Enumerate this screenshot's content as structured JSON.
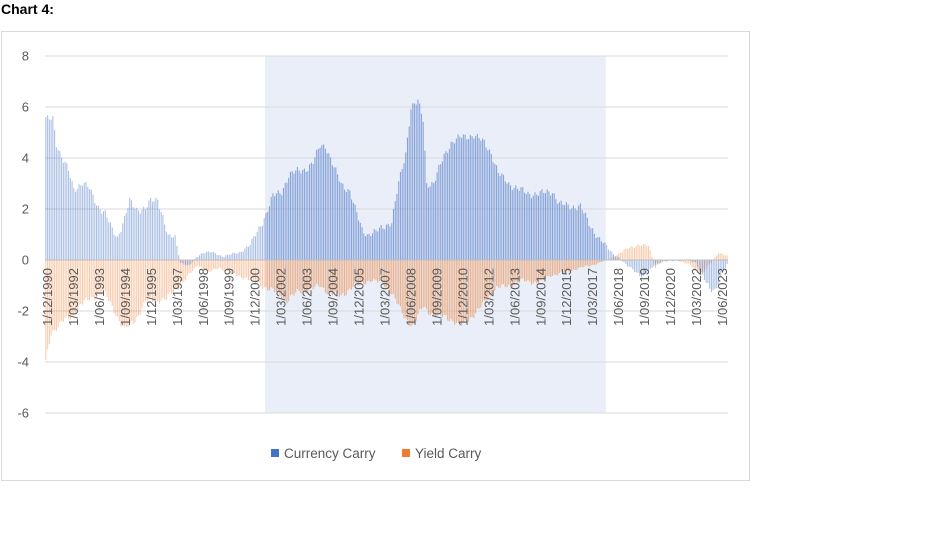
{
  "heading": "Chart 4:",
  "chart_data": {
    "type": "bar",
    "stacked": true,
    "ylim": [
      -6,
      8
    ],
    "yticks": [
      "8",
      "6",
      "4",
      "2",
      "0",
      "-2",
      "-4",
      "-6"
    ],
    "x_start": "1990-12",
    "x_end": "2023-06",
    "x_tick_labels": [
      "1/12/1990",
      "1/03/1992",
      "1/06/1993",
      "1/09/1994",
      "1/12/1995",
      "1/03/1997",
      "1/06/1998",
      "1/09/1999",
      "1/12/2000",
      "1/03/2002",
      "1/06/2003",
      "1/09/2004",
      "1/12/2005",
      "1/03/2007",
      "1/06/2008",
      "1/09/2009",
      "1/12/2010",
      "1/03/2012",
      "1/06/2013",
      "1/09/2014",
      "1/12/2015",
      "1/03/2017",
      "1/06/2018",
      "1/09/2019",
      "1/12/2020",
      "1/03/2022",
      "1/06/2023"
    ],
    "shaded_period": [
      "2001-06",
      "2017-08"
    ],
    "grid": true,
    "legend_position": "bottom",
    "colors": {
      "currency": "#4472C4",
      "yield": "#ED7D31",
      "shade": "#E9EEF8",
      "grid": "#d9d9d9",
      "axis": "#bfbfbf"
    },
    "series": [
      {
        "name": "Currency Carry",
        "anchors": [
          [
            "1990-12",
            5.5
          ],
          [
            "1991-04",
            5.6
          ],
          [
            "1991-06",
            4.6
          ],
          [
            "1991-09",
            4.0
          ],
          [
            "1992-01",
            3.5
          ],
          [
            "1992-04",
            2.8
          ],
          [
            "1992-09",
            3.0
          ],
          [
            "1993-01",
            2.8
          ],
          [
            "1993-06",
            2.1
          ],
          [
            "1993-10",
            1.8
          ],
          [
            "1994-02",
            1.2
          ],
          [
            "1994-05",
            0.9
          ],
          [
            "1994-09",
            1.6
          ],
          [
            "1994-12",
            2.3
          ],
          [
            "1995-04",
            2.0
          ],
          [
            "1995-09",
            2.0
          ],
          [
            "1995-12",
            2.3
          ],
          [
            "1996-04",
            2.4
          ],
          [
            "1996-07",
            1.7
          ],
          [
            "1996-10",
            0.9
          ],
          [
            "1997-02",
            0.9
          ],
          [
            "1997-05",
            -0.1
          ],
          [
            "1997-10",
            -0.25
          ],
          [
            "1998-02",
            0.1
          ],
          [
            "1998-06",
            0.3
          ],
          [
            "1998-11",
            0.3
          ],
          [
            "1999-05",
            0.15
          ],
          [
            "1999-09",
            0.2
          ],
          [
            "2000-03",
            0.3
          ],
          [
            "2000-09",
            0.6
          ],
          [
            "2001-01",
            1.1
          ],
          [
            "2001-06",
            1.8
          ],
          [
            "2001-10",
            2.5
          ],
          [
            "2002-03",
            2.7
          ],
          [
            "2002-07",
            3.3
          ],
          [
            "2002-12",
            3.5
          ],
          [
            "2003-06",
            3.6
          ],
          [
            "2003-09",
            3.8
          ],
          [
            "2004-01",
            4.5
          ],
          [
            "2004-04",
            4.5
          ],
          [
            "2004-09",
            3.6
          ],
          [
            "2005-01",
            3.0
          ],
          [
            "2005-06",
            2.7
          ],
          [
            "2005-09",
            2.0
          ],
          [
            "2006-01",
            1.2
          ],
          [
            "2006-04",
            1.0
          ],
          [
            "2006-09",
            1.1
          ],
          [
            "2007-01",
            1.3
          ],
          [
            "2007-06",
            1.5
          ],
          [
            "2007-10",
            3.0
          ],
          [
            "2008-02",
            4.2
          ],
          [
            "2008-05",
            6.0
          ],
          [
            "2008-09",
            6.2
          ],
          [
            "2008-12",
            5.5
          ],
          [
            "2009-02",
            3.0
          ],
          [
            "2009-06",
            3.0
          ],
          [
            "2009-12",
            4.1
          ],
          [
            "2010-04",
            4.6
          ],
          [
            "2010-09",
            4.8
          ],
          [
            "2011-05",
            4.9
          ],
          [
            "2011-11",
            4.6
          ],
          [
            "2012-03",
            4.2
          ],
          [
            "2012-07",
            3.4
          ],
          [
            "2013-01",
            3.0
          ],
          [
            "2013-06",
            2.8
          ],
          [
            "2013-12",
            2.6
          ],
          [
            "2014-07",
            2.6
          ],
          [
            "2015-02",
            2.7
          ],
          [
            "2015-06",
            2.2
          ],
          [
            "2015-12",
            2.1
          ],
          [
            "2016-06",
            2.1
          ],
          [
            "2016-12",
            1.3
          ],
          [
            "2017-04",
            0.9
          ],
          [
            "2017-08",
            0.6
          ],
          [
            "2017-12",
            0.3
          ],
          [
            "2018-04",
            0.1
          ],
          [
            "2018-08",
            -0.2
          ],
          [
            "2018-12",
            -0.35
          ],
          [
            "2019-06",
            -0.7
          ],
          [
            "2019-09",
            -0.5
          ],
          [
            "2019-12",
            -0.2
          ],
          [
            "2020-06",
            -0.05
          ],
          [
            "2021-06",
            0.0
          ],
          [
            "2021-12",
            -0.1
          ],
          [
            "2022-04",
            -0.6
          ],
          [
            "2022-08",
            -1.2
          ],
          [
            "2022-11",
            -1.2
          ],
          [
            "2023-03",
            -0.5
          ],
          [
            "2023-06",
            -0.2
          ]
        ]
      },
      {
        "name": "Yield Carry",
        "anchors": [
          [
            "1990-12",
            -4.0
          ],
          [
            "1991-03",
            -2.9
          ],
          [
            "1991-09",
            -2.4
          ],
          [
            "1992-02",
            -2.3
          ],
          [
            "1992-08",
            -1.7
          ],
          [
            "1993-03",
            -1.5
          ],
          [
            "1993-09",
            -1.2
          ],
          [
            "1994-03",
            -2.0
          ],
          [
            "1994-09",
            -2.7
          ],
          [
            "1995-03",
            -2.4
          ],
          [
            "1995-09",
            -1.6
          ],
          [
            "1996-03",
            -1.6
          ],
          [
            "1996-09",
            -1.5
          ],
          [
            "1997-02",
            -1.2
          ],
          [
            "1997-07",
            -0.8
          ],
          [
            "1998-03",
            -0.2
          ],
          [
            "1998-09",
            -0.5
          ],
          [
            "1999-03",
            -0.3
          ],
          [
            "1999-09",
            -0.5
          ],
          [
            "2000-06",
            -0.7
          ],
          [
            "2001-01",
            -0.9
          ],
          [
            "2001-06",
            -1.1
          ],
          [
            "2002-01",
            -1.3
          ],
          [
            "2002-06",
            -1.6
          ],
          [
            "2003-01",
            -1.2
          ],
          [
            "2003-06",
            -1.2
          ],
          [
            "2004-01",
            -1.0
          ],
          [
            "2004-06",
            -1.3
          ],
          [
            "2005-01",
            -1.4
          ],
          [
            "2005-09",
            -1.0
          ],
          [
            "2006-06",
            -0.8
          ],
          [
            "2007-01",
            -0.9
          ],
          [
            "2007-06",
            -1.3
          ],
          [
            "2008-01",
            -2.2
          ],
          [
            "2008-06",
            -2.6
          ],
          [
            "2008-12",
            -1.8
          ],
          [
            "2009-06",
            -2.2
          ],
          [
            "2010-01",
            -2.2
          ],
          [
            "2010-09",
            -2.6
          ],
          [
            "2011-06",
            -2.1
          ],
          [
            "2012-01",
            -1.5
          ],
          [
            "2012-06",
            -1.1
          ],
          [
            "2013-01",
            -1.0
          ],
          [
            "2013-09",
            -0.8
          ],
          [
            "2014-06",
            -0.9
          ],
          [
            "2015-01",
            -0.6
          ],
          [
            "2015-09",
            -0.5
          ],
          [
            "2016-06",
            -0.3
          ],
          [
            "2017-01",
            -0.2
          ],
          [
            "2017-09",
            0.0
          ],
          [
            "2018-03",
            0.2
          ],
          [
            "2018-09",
            0.45
          ],
          [
            "2019-03",
            0.6
          ],
          [
            "2019-09",
            0.55
          ],
          [
            "2020-01",
            -0.3
          ],
          [
            "2020-03",
            -0.1
          ],
          [
            "2021-01",
            0.0
          ],
          [
            "2021-09",
            -0.2
          ],
          [
            "2022-03",
            -0.6
          ],
          [
            "2022-09",
            -0.1
          ],
          [
            "2023-01",
            0.3
          ],
          [
            "2023-06",
            0.15
          ]
        ]
      }
    ]
  }
}
